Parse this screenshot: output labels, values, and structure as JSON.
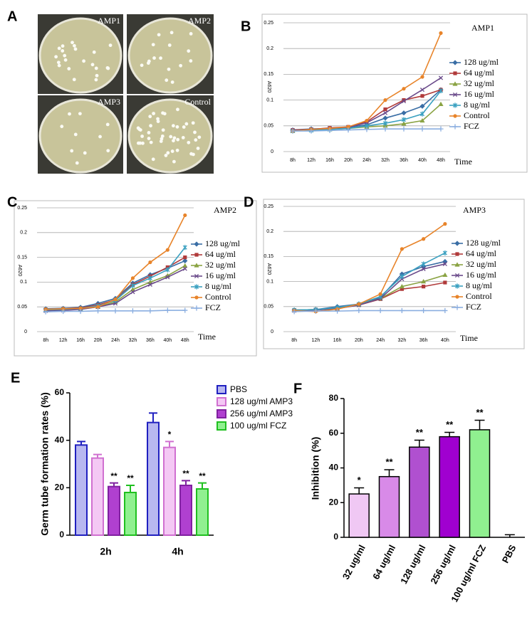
{
  "photos": {
    "panel": "A",
    "labels": [
      "AMP1",
      "AMP2",
      "AMP3",
      "Control"
    ]
  },
  "chart_data": [
    {
      "type": "line",
      "panel": "B",
      "title": "AMP1",
      "x_label": "Time",
      "y_label": "A620",
      "categories": [
        "8h",
        "12h",
        "16h",
        "20h",
        "24h",
        "32h",
        "36h",
        "40h",
        "48h"
      ],
      "ylim": [
        0,
        0.25
      ],
      "yticks": [
        0,
        0.05,
        0.1,
        0.15,
        0.2,
        0.25
      ],
      "grid": true,
      "series": [
        {
          "name": "128 ug/ml",
          "color": "#3a6ea5",
          "marker": "diamond",
          "values": [
            0.042,
            0.044,
            0.045,
            0.047,
            0.052,
            0.065,
            0.075,
            0.088,
            0.12
          ]
        },
        {
          "name": "64 ug/ml",
          "color": "#b03a3a",
          "marker": "square",
          "values": [
            0.042,
            0.043,
            0.046,
            0.048,
            0.058,
            0.082,
            0.1,
            0.108,
            0.12
          ]
        },
        {
          "name": "32 ug/ml",
          "color": "#8aa343",
          "marker": "triangle",
          "values": [
            0.04,
            0.042,
            0.043,
            0.045,
            0.048,
            0.05,
            0.054,
            0.06,
            0.092
          ]
        },
        {
          "name": "16 ug/ml",
          "color": "#6a4a8a",
          "marker": "x",
          "values": [
            0.041,
            0.043,
            0.045,
            0.047,
            0.056,
            0.075,
            0.098,
            0.12,
            0.143
          ]
        },
        {
          "name": "8 ug/ml",
          "color": "#3aa0c0",
          "marker": "star",
          "values": [
            0.04,
            0.041,
            0.043,
            0.045,
            0.05,
            0.055,
            0.062,
            0.073,
            0.118
          ]
        },
        {
          "name": "Control",
          "color": "#e8842a",
          "marker": "circle",
          "values": [
            0.04,
            0.043,
            0.045,
            0.048,
            0.06,
            0.1,
            0.122,
            0.145,
            0.23
          ]
        },
        {
          "name": "FCZ",
          "color": "#8aaee0",
          "marker": "plus",
          "values": [
            0.04,
            0.04,
            0.041,
            0.042,
            0.043,
            0.044,
            0.044,
            0.044,
            0.044
          ]
        }
      ]
    },
    {
      "type": "line",
      "panel": "C",
      "title": "AMP2",
      "x_label": "Time",
      "y_label": "A620",
      "categories": [
        "8h",
        "12h",
        "16h",
        "20h",
        "24h",
        "32h",
        "36h",
        "40h",
        "48h"
      ],
      "ylim": [
        0,
        0.25
      ],
      "yticks": [
        0,
        0.05,
        0.1,
        0.15,
        0.2,
        0.25
      ],
      "grid": true,
      "series": [
        {
          "name": "128 ug/ml",
          "color": "#3a6ea5",
          "marker": "diamond",
          "values": [
            0.046,
            0.047,
            0.049,
            0.057,
            0.067,
            0.098,
            0.115,
            0.128,
            0.143
          ]
        },
        {
          "name": "64 ug/ml",
          "color": "#b03a3a",
          "marker": "square",
          "values": [
            0.045,
            0.046,
            0.048,
            0.054,
            0.064,
            0.095,
            0.112,
            0.13,
            0.15
          ]
        },
        {
          "name": "32 ug/ml",
          "color": "#8aa343",
          "marker": "triangle",
          "values": [
            0.043,
            0.044,
            0.046,
            0.05,
            0.06,
            0.085,
            0.1,
            0.113,
            0.133
          ]
        },
        {
          "name": "16 ug/ml",
          "color": "#6a4a8a",
          "marker": "x",
          "values": [
            0.042,
            0.043,
            0.045,
            0.05,
            0.057,
            0.08,
            0.095,
            0.11,
            0.127
          ]
        },
        {
          "name": "8 ug/ml",
          "color": "#3aa0c0",
          "marker": "star",
          "values": [
            0.044,
            0.045,
            0.047,
            0.052,
            0.063,
            0.093,
            0.108,
            0.125,
            0.17
          ]
        },
        {
          "name": "Control",
          "color": "#e8842a",
          "marker": "circle",
          "values": [
            0.045,
            0.046,
            0.047,
            0.05,
            0.065,
            0.108,
            0.14,
            0.165,
            0.235
          ]
        },
        {
          "name": "FCZ",
          "color": "#8aaee0",
          "marker": "plus",
          "values": [
            0.04,
            0.041,
            0.041,
            0.042,
            0.042,
            0.042,
            0.042,
            0.043,
            0.043
          ]
        }
      ]
    },
    {
      "type": "line",
      "panel": "D",
      "title": "AMP3",
      "x_label": "Time",
      "y_label": "A620",
      "categories": [
        "8h",
        "12h",
        "16h",
        "20h",
        "24h",
        "32h",
        "36h",
        "40h"
      ],
      "ylim": [
        0,
        0.25
      ],
      "yticks": [
        0,
        0.05,
        0.1,
        0.15,
        0.2,
        0.25
      ],
      "grid": true,
      "series": [
        {
          "name": "128 ug/ml",
          "color": "#3a6ea5",
          "marker": "diamond",
          "values": [
            0.043,
            0.044,
            0.05,
            0.055,
            0.068,
            0.115,
            0.13,
            0.14
          ]
        },
        {
          "name": "64 ug/ml",
          "color": "#b03a3a",
          "marker": "square",
          "values": [
            0.043,
            0.044,
            0.047,
            0.053,
            0.065,
            0.085,
            0.09,
            0.098
          ]
        },
        {
          "name": "32 ug/ml",
          "color": "#8aa343",
          "marker": "triangle",
          "values": [
            0.043,
            0.044,
            0.046,
            0.054,
            0.066,
            0.09,
            0.1,
            0.113
          ]
        },
        {
          "name": "16 ug/ml",
          "color": "#6a4a8a",
          "marker": "x",
          "values": [
            0.042,
            0.043,
            0.046,
            0.053,
            0.066,
            0.105,
            0.125,
            0.135
          ]
        },
        {
          "name": "8 ug/ml",
          "color": "#3aa0c0",
          "marker": "star",
          "values": [
            0.043,
            0.044,
            0.048,
            0.055,
            0.07,
            0.11,
            0.135,
            0.157
          ]
        },
        {
          "name": "Control",
          "color": "#e8842a",
          "marker": "circle",
          "values": [
            0.042,
            0.04,
            0.045,
            0.055,
            0.075,
            0.165,
            0.185,
            0.215
          ]
        },
        {
          "name": "FCZ",
          "color": "#8aaee0",
          "marker": "plus",
          "values": [
            0.04,
            0.041,
            0.041,
            0.042,
            0.042,
            0.042,
            0.042,
            0.042
          ]
        }
      ]
    },
    {
      "type": "grouped_bar",
      "panel": "E",
      "y_label": "Germ tube formation rates (%)",
      "categories": [
        "2h",
        "4h"
      ],
      "ylim": [
        0,
        60
      ],
      "yticks": [
        0,
        20,
        40,
        60
      ],
      "grid": false,
      "series": [
        {
          "name": "PBS",
          "color": "#b8b8f0",
          "edge": "#2020c0",
          "values": [
            38,
            47.5
          ],
          "errors": [
            1.5,
            4
          ],
          "annotations": [
            null,
            null
          ]
        },
        {
          "name": "128 ug/ml AMP3",
          "color": "#f4c8f4",
          "edge": "#d070d0",
          "values": [
            32.5,
            37
          ],
          "errors": [
            1.5,
            2.5
          ],
          "annotations": [
            null,
            "*"
          ]
        },
        {
          "name": "256 ug/ml AMP3",
          "color": "#b040d0",
          "edge": "#8020a0",
          "values": [
            20.5,
            21
          ],
          "errors": [
            1.5,
            2
          ],
          "annotations": [
            "**",
            "**"
          ]
        },
        {
          "name": "100 ug/ml FCZ",
          "color": "#90f090",
          "edge": "#20c020",
          "values": [
            18,
            19.5
          ],
          "errors": [
            3,
            2.5
          ],
          "annotations": [
            "**",
            "**"
          ]
        }
      ]
    },
    {
      "type": "bar",
      "panel": "F",
      "y_label": "Inhibition (%)",
      "categories": [
        "32 ug/ml",
        "64 ug/ml",
        "128 ug/ml",
        "256 ug/ml",
        "100 ug/ml FCZ",
        "PBS"
      ],
      "values": [
        25,
        35,
        52,
        58,
        62,
        0
      ],
      "errors": [
        3.5,
        4,
        4,
        2.5,
        5.5,
        1.5
      ],
      "annotations": [
        "*",
        "**",
        "**",
        "**",
        "**",
        null
      ],
      "colors": [
        "#f0c8f4",
        "#d88ae8",
        "#b050d0",
        "#a000d0",
        "#90f090",
        "#000000"
      ],
      "ylim": [
        0,
        80
      ],
      "yticks": [
        0,
        20,
        40,
        60,
        80
      ],
      "grid": false
    }
  ]
}
